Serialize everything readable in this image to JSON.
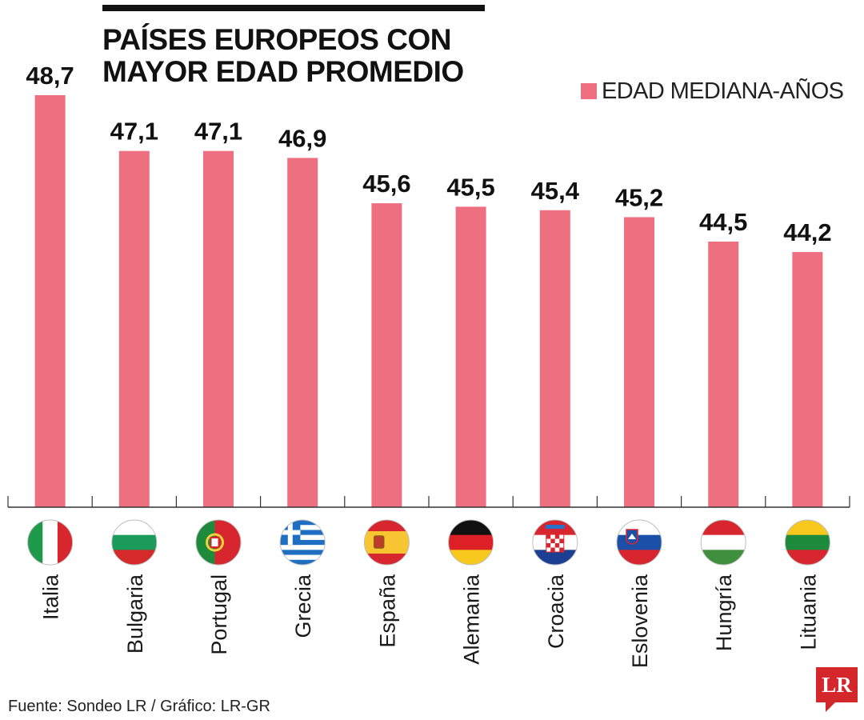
{
  "header": {
    "title_line1": "PAÍSES EUROPEOS CON",
    "title_line2": "MAYOR EDAD PROMEDIO"
  },
  "legend": {
    "label": "EDAD MEDIANA-AÑOS",
    "color": "#ee6f7f"
  },
  "footer": {
    "source": "Fuente: Sondeo LR / Gráfico: LR-GR",
    "logo_text": "LR"
  },
  "colors": {
    "bar": "#ee6f7f",
    "axis": "#333333",
    "text": "#111111",
    "logo": "#d3272c"
  },
  "chart_data": {
    "type": "bar",
    "title": "PAÍSES EUROPEOS CON MAYOR EDAD PROMEDIO",
    "categories": [
      "Italia",
      "Bulgaria",
      "Portugal",
      "Grecia",
      "España",
      "Alemania",
      "Croacia",
      "Eslovenia",
      "Hungría",
      "Lituania"
    ],
    "series": [
      {
        "name": "EDAD MEDIANA-AÑOS",
        "values": [
          48.7,
          47.1,
          47.1,
          46.9,
          45.6,
          45.5,
          45.4,
          45.2,
          44.5,
          44.2
        ]
      }
    ],
    "value_labels": [
      "48,7",
      "47,1",
      "47,1",
      "46,9",
      "45,6",
      "45,5",
      "45,4",
      "45,2",
      "44,5",
      "44,2"
    ],
    "flag_icons": [
      "italy-flag",
      "bulgaria-flag",
      "portugal-flag",
      "greece-flag",
      "spain-flag",
      "germany-flag",
      "croatia-flag",
      "slovenia-flag",
      "hungary-flag",
      "lithuania-flag"
    ],
    "ylim": [
      37.2,
      48.7
    ],
    "grid": false,
    "legend_position": "top-right"
  }
}
